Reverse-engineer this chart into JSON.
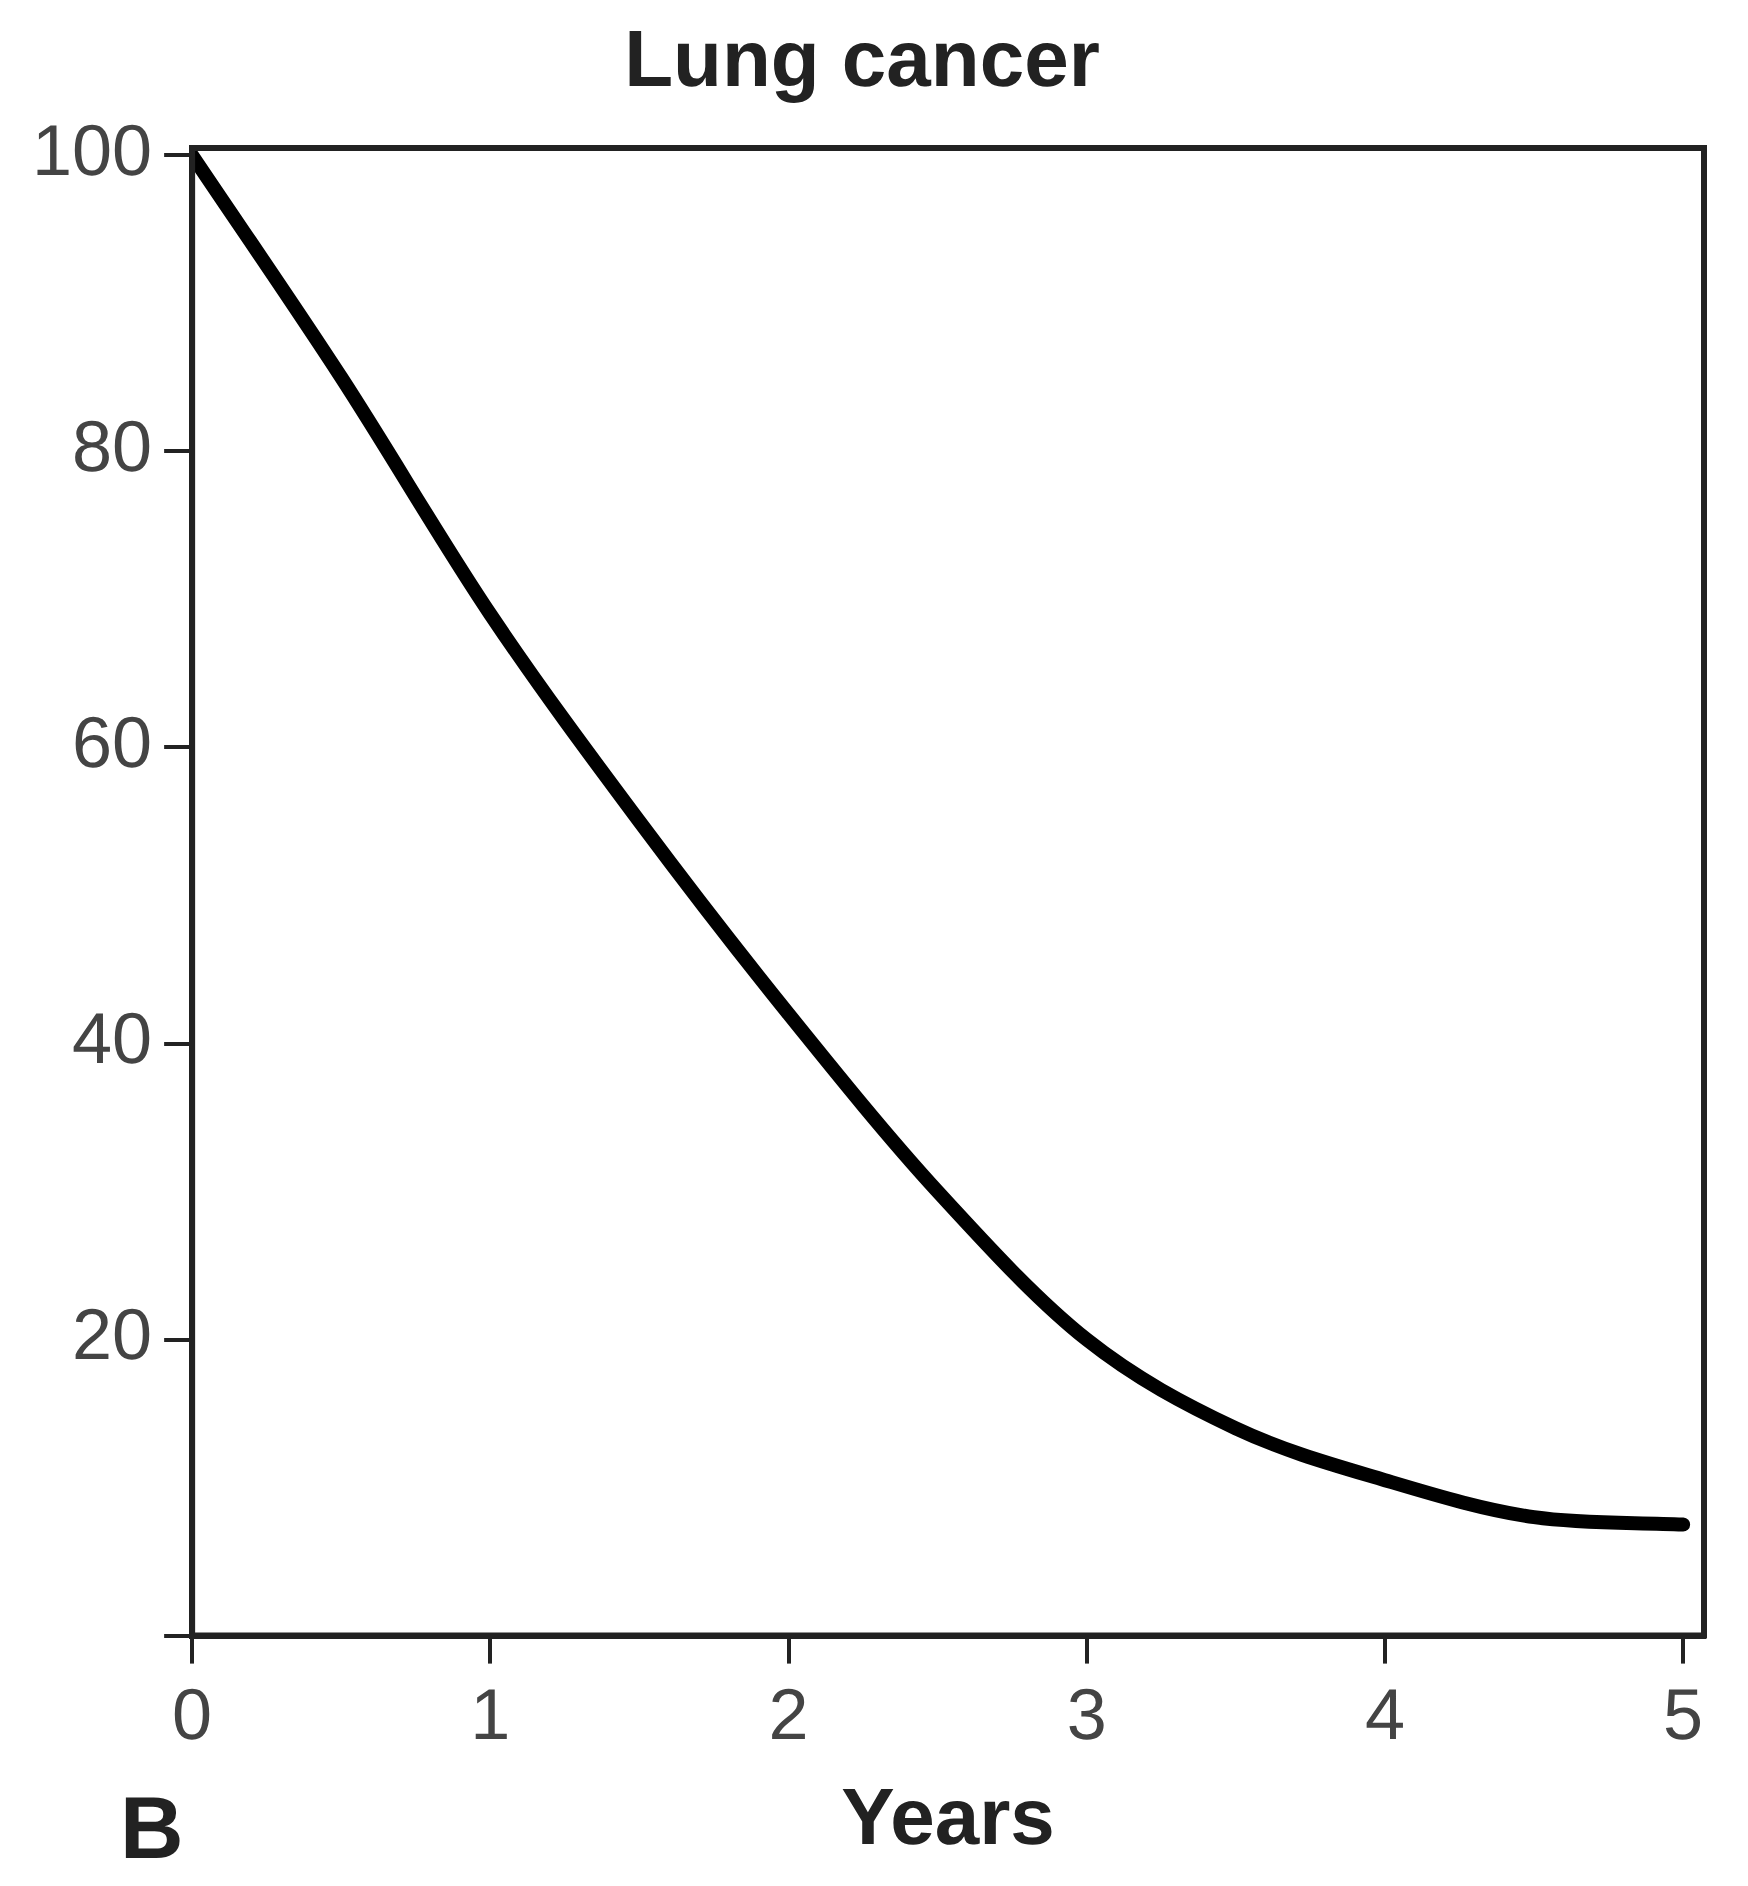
{
  "chart_data": {
    "type": "line",
    "title": "Lung cancer",
    "xlabel": "Years",
    "annotations": [
      "B"
    ],
    "x": [
      0,
      0.5,
      1,
      1.5,
      2,
      2.5,
      3,
      3.5,
      4,
      4.5,
      5
    ],
    "series": [
      {
        "color": "#000000",
        "values": [
          100,
          85,
          69,
          55,
          42,
          30,
          20,
          14,
          10.5,
          8,
          7.5
        ]
      }
    ],
    "xlim": [
      0,
      5.07
    ],
    "xticks": [
      0,
      1,
      2,
      3,
      4,
      5
    ],
    "ylim": [
      0,
      100.5
    ],
    "yticks": [
      {
        "value": 0,
        "label": null
      },
      20,
      40,
      60,
      80,
      100
    ],
    "grid": false,
    "legend": false,
    "marker": "none",
    "line_style": "solid"
  }
}
